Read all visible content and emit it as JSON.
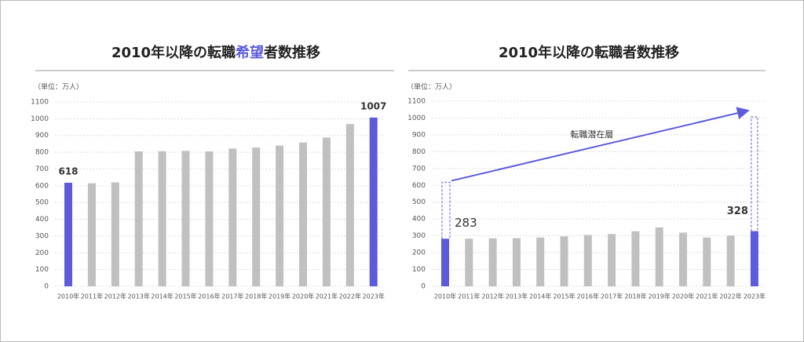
{
  "chart_data": [
    {
      "type": "bar",
      "title_parts": [
        "2010年以降の転職",
        "希望",
        "者数推移"
      ],
      "unit_label": "（単位：万人）",
      "categories": [
        "2010年",
        "2011年",
        "2012年",
        "2013年",
        "2014年",
        "2015年",
        "2016年",
        "2017年",
        "2018年",
        "2019年",
        "2020年",
        "2021年",
        "2022年",
        "2023年"
      ],
      "values": [
        618,
        615,
        620,
        805,
        806,
        808,
        805,
        822,
        828,
        840,
        858,
        888,
        968,
        1007
      ],
      "colors": [
        "#5b5bdc",
        "#c0c0c0",
        "#c0c0c0",
        "#c0c0c0",
        "#c0c0c0",
        "#c0c0c0",
        "#c0c0c0",
        "#c0c0c0",
        "#c0c0c0",
        "#c0c0c0",
        "#c0c0c0",
        "#c0c0c0",
        "#c0c0c0",
        "#5b5bdc"
      ],
      "highlight_color": "#5b5bdc",
      "ylim": [
        0,
        1100
      ],
      "yticks": [
        0,
        100,
        200,
        300,
        400,
        500,
        600,
        700,
        800,
        900,
        1000,
        1100
      ],
      "grid": true
    },
    {
      "type": "bar",
      "title_parts": [
        "2010年以降の転職者数推移"
      ],
      "unit_label": "（単位：万人）",
      "annotation": "転職潜在層",
      "categories": [
        "2010年",
        "2011年",
        "2012年",
        "2013年",
        "2014年",
        "2015年",
        "2016年",
        "2017年",
        "2018年",
        "2019年",
        "2020年",
        "2021年",
        "2022年",
        "2023年"
      ],
      "values": [
        283,
        283,
        285,
        286,
        290,
        297,
        305,
        311,
        327,
        350,
        319,
        290,
        302,
        328
      ],
      "colors": [
        "#5b5bdc",
        "#c0c0c0",
        "#c0c0c0",
        "#c0c0c0",
        "#c0c0c0",
        "#c0c0c0",
        "#c0c0c0",
        "#c0c0c0",
        "#c0c0c0",
        "#c0c0c0",
        "#c0c0c0",
        "#c0c0c0",
        "#c0c0c0",
        "#5b5bdc"
      ],
      "highlight_color": "#5b5bdc",
      "ylim": [
        0,
        1100
      ],
      "yticks": [
        0,
        100,
        200,
        300,
        400,
        500,
        600,
        700,
        800,
        900,
        1000,
        1100
      ],
      "grid": true
    }
  ]
}
